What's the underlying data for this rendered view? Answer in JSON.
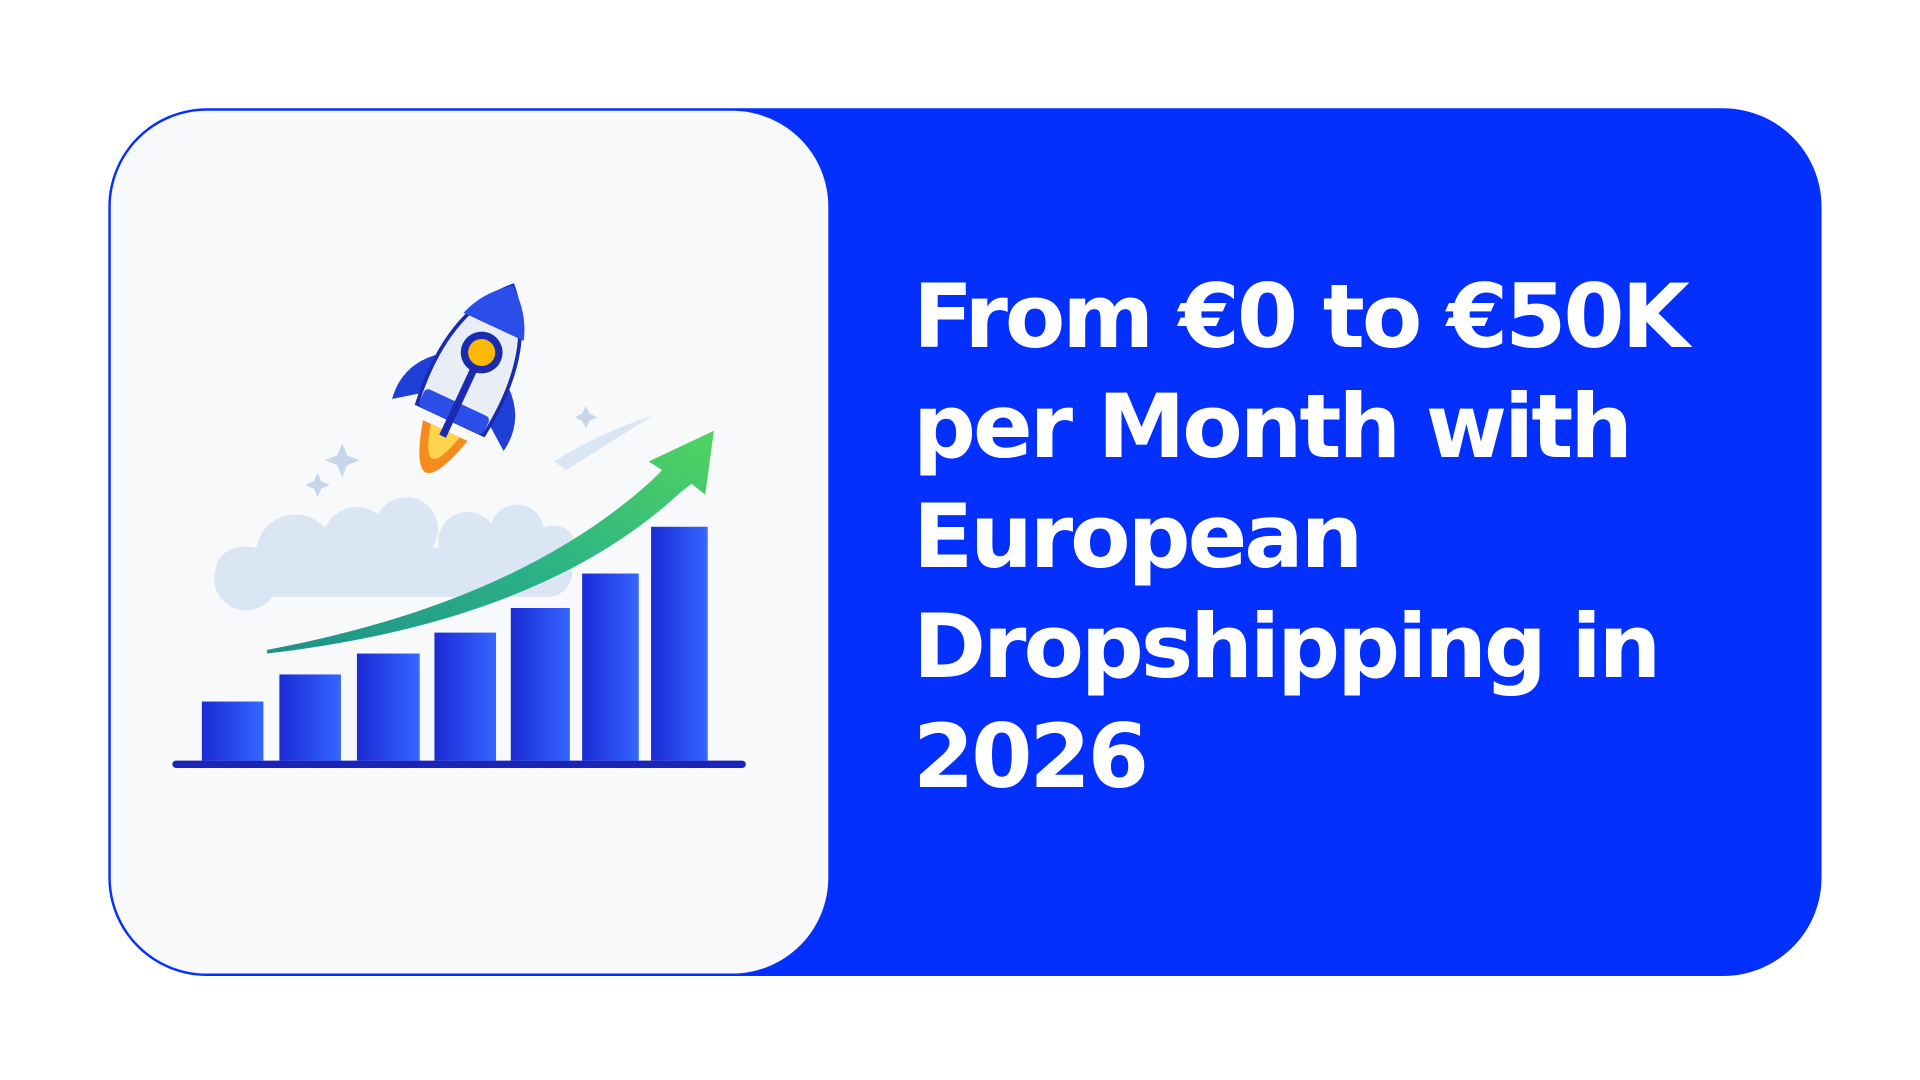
{
  "heading": "From €0 to €50K per Month with European Dropshipping in 2026"
}
